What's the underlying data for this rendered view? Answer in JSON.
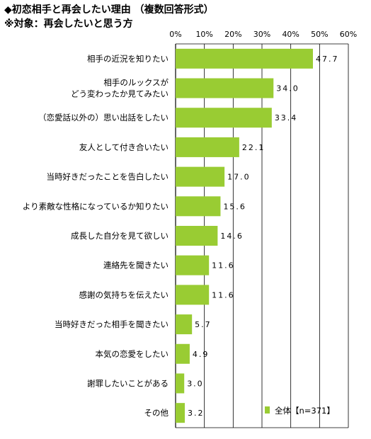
{
  "title_lines": [
    "◆初恋相手と再会したい理由 （複数回答形式）",
    "※対象：再会したいと思う方"
  ],
  "chart_data": {
    "type": "bar",
    "orientation": "horizontal",
    "title": "◆初恋相手と再会したい理由 （複数回答形式）",
    "subtitle": "※対象：再会したいと思う方",
    "xlim": [
      0,
      60
    ],
    "x_ticks": [
      0,
      10,
      20,
      30,
      40,
      50,
      60
    ],
    "x_tick_labels": [
      "0%",
      "10%",
      "20%",
      "30%",
      "40%",
      "50%",
      "60%"
    ],
    "x_axis_position": "top",
    "grid": true,
    "legend_position": "bottom-right",
    "categories": [
      "相手の近況を知りたい",
      "相手のルックスが\nどう変わったか見てみたい",
      "（恋愛話以外の）思い出話をしたい",
      "友人として付き合いたい",
      "当時好きだったことを告白したい",
      "より素敵な性格になっているか知りたい",
      "成長した自分を見て欲しい",
      "連絡先を聞きたい",
      "感謝の気持ちを伝えたい",
      "当時好きだった相手を聞きたい",
      "本気の恋愛をしたい",
      "謝罪したいことがある",
      "その他"
    ],
    "series": [
      {
        "name": "全体【n=371】",
        "color": "#99cc33",
        "values": [
          47.7,
          34.0,
          33.4,
          22.1,
          17.0,
          15.6,
          14.6,
          11.6,
          11.6,
          5.7,
          4.9,
          3.0,
          3.2
        ],
        "value_labels": [
          "47.7",
          "34.0",
          "33.4",
          "22.1",
          "17.0",
          "15.6",
          "14.6",
          "11.6",
          "11.6",
          "5.7",
          "4.9",
          "3.0",
          "3.2"
        ]
      }
    ]
  }
}
